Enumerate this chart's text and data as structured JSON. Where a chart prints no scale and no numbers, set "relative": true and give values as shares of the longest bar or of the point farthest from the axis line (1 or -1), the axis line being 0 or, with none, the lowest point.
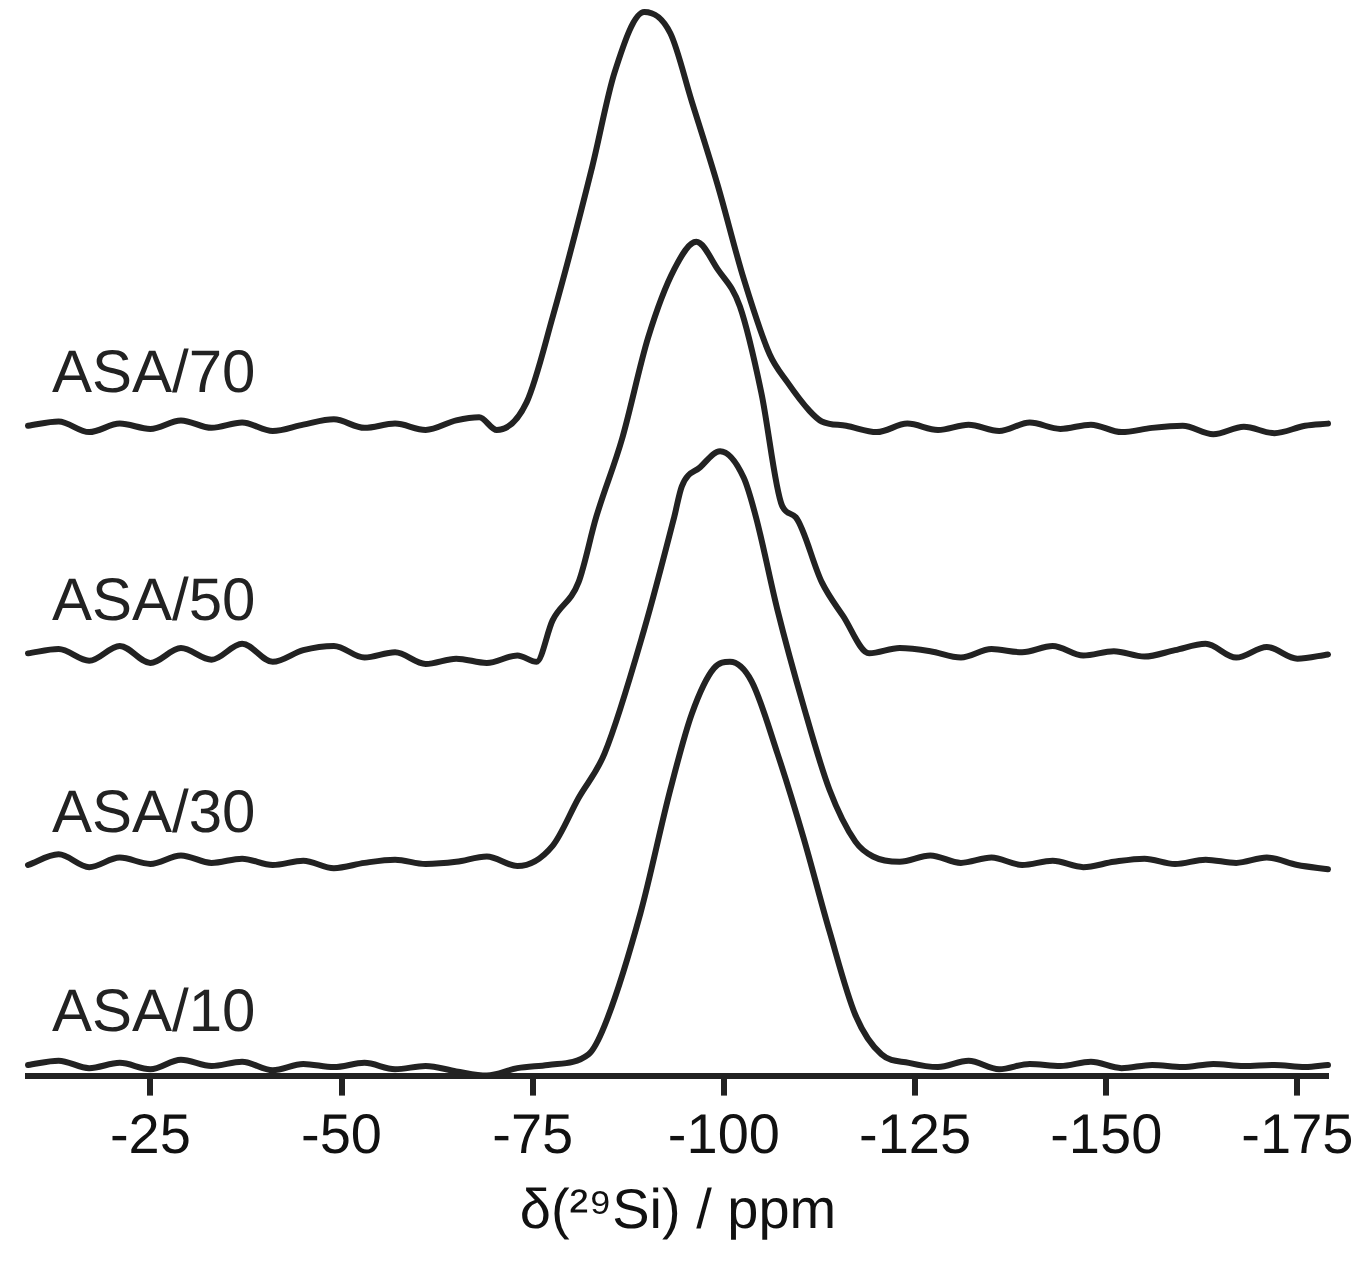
{
  "chart_data": {
    "type": "line",
    "xlabel": "δ(²⁹Si) / ppm",
    "relative": true,
    "xlim": [
      -9,
      -179
    ],
    "xticks": [
      -25,
      -50,
      -75,
      -100,
      -125,
      -150,
      -175
    ],
    "grid": false,
    "legend": false,
    "marker": "none",
    "tick_labels": "x",
    "series": [
      {
        "name": "ASA/70",
        "color": "#222222",
        "x": [
          -9,
          -13,
          -17,
          -21,
          -25,
          -29,
          -33,
          -37,
          -41,
          -45,
          -49,
          -53,
          -57,
          -61,
          -65,
          -68,
          -70.3,
          -74.2,
          -77.6,
          -82.8,
          -85.7,
          -89.6,
          -93.0,
          -95.8,
          -99.2,
          -102.6,
          -106.0,
          -108.3,
          -111.2,
          -112.8,
          -116,
          -120,
          -124,
          -128,
          -132,
          -136,
          -140,
          -144,
          -148,
          -152,
          -156,
          -160,
          -164,
          -168,
          -172,
          -176,
          -179
        ],
        "values": [
          0.611,
          0.615,
          0.605,
          0.613,
          0.608,
          0.616,
          0.609,
          0.614,
          0.606,
          0.612,
          0.617,
          0.609,
          0.613,
          0.607,
          0.616,
          0.619,
          0.607,
          0.633,
          0.713,
          0.855,
          0.943,
          1.0,
          0.98,
          0.916,
          0.837,
          0.749,
          0.678,
          0.652,
          0.625,
          0.615,
          0.611,
          0.605,
          0.613,
          0.607,
          0.612,
          0.606,
          0.614,
          0.608,
          0.612,
          0.605,
          0.609,
          0.611,
          0.603,
          0.61,
          0.604,
          0.611,
          0.613
        ]
      },
      {
        "name": "ASA/50",
        "color": "#222222",
        "x": [
          -9,
          -13,
          -17,
          -21,
          -25,
          -29,
          -33,
          -37,
          -41,
          -45,
          -49,
          -53,
          -57,
          -61,
          -65,
          -69,
          -73,
          -75.5,
          -77.6,
          -81.0,
          -83.3,
          -86.7,
          -90.1,
          -93.5,
          -96.4,
          -99.2,
          -102.1,
          -104.9,
          -107.6,
          -109.4,
          -112.8,
          -115.6,
          -119.0,
          -123,
          -127,
          -131,
          -135,
          -139,
          -143,
          -147,
          -151,
          -155,
          -159,
          -163,
          -167,
          -171,
          -175,
          -179
        ],
        "values": [
          0.397,
          0.401,
          0.39,
          0.404,
          0.388,
          0.402,
          0.391,
          0.406,
          0.389,
          0.4,
          0.404,
          0.393,
          0.398,
          0.387,
          0.392,
          0.388,
          0.395,
          0.389,
          0.428,
          0.464,
          0.525,
          0.599,
          0.694,
          0.758,
          0.784,
          0.758,
          0.723,
          0.642,
          0.536,
          0.525,
          0.464,
          0.432,
          0.397,
          0.402,
          0.399,
          0.393,
          0.401,
          0.398,
          0.404,
          0.395,
          0.399,
          0.394,
          0.4,
          0.406,
          0.393,
          0.403,
          0.392,
          0.396
        ]
      },
      {
        "name": "ASA/30",
        "color": "#222222",
        "x": [
          -9,
          -13,
          -17,
          -21,
          -25,
          -29,
          -33,
          -37,
          -41,
          -45,
          -49,
          -53,
          -57,
          -61,
          -65,
          -69,
          -73,
          -77.6,
          -81.0,
          -84.4,
          -89.6,
          -93.5,
          -94.5,
          -96.9,
          -99.5,
          -102.6,
          -104.2,
          -107.0,
          -110.4,
          -113.8,
          -117.2,
          -119.5,
          -123,
          -127,
          -131,
          -135,
          -139,
          -143,
          -147,
          -151,
          -155,
          -159,
          -163,
          -167,
          -171,
          -175,
          -179
        ],
        "values": [
          0.198,
          0.208,
          0.196,
          0.205,
          0.199,
          0.207,
          0.2,
          0.204,
          0.198,
          0.202,
          0.195,
          0.2,
          0.203,
          0.199,
          0.201,
          0.206,
          0.197,
          0.216,
          0.261,
          0.303,
          0.42,
          0.525,
          0.554,
          0.572,
          0.587,
          0.562,
          0.525,
          0.438,
          0.348,
          0.269,
          0.22,
          0.206,
          0.201,
          0.207,
          0.2,
          0.205,
          0.198,
          0.202,
          0.196,
          0.201,
          0.204,
          0.199,
          0.203,
          0.2,
          0.205,
          0.198,
          0.194
        ]
      },
      {
        "name": "ASA/10",
        "color": "#222222",
        "x": [
          -9,
          -13,
          -17,
          -21,
          -25,
          -29,
          -33,
          -37,
          -41,
          -45,
          -49,
          -53,
          -57,
          -61,
          -65,
          -69,
          -73,
          -77,
          -82.3,
          -84.4,
          -89.1,
          -93.0,
          -95.8,
          -98.7,
          -100.8,
          -103.6,
          -107.0,
          -110.4,
          -113.8,
          -117.2,
          -120.6,
          -124.2,
          -128,
          -132,
          -136,
          -140,
          -144,
          -148,
          -152,
          -156,
          -160,
          -164,
          -168,
          -172,
          -176,
          -179
        ],
        "values": [
          0.01,
          0.014,
          0.007,
          0.012,
          0.006,
          0.015,
          0.009,
          0.013,
          0.005,
          0.011,
          0.008,
          0.012,
          0.006,
          0.009,
          0.004,
          0.0,
          0.007,
          0.01,
          0.02,
          0.047,
          0.153,
          0.269,
          0.34,
          0.383,
          0.389,
          0.371,
          0.303,
          0.224,
          0.136,
          0.057,
          0.02,
          0.012,
          0.008,
          0.014,
          0.006,
          0.011,
          0.009,
          0.013,
          0.007,
          0.01,
          0.008,
          0.011,
          0.009,
          0.01,
          0.008,
          0.01
        ]
      }
    ]
  }
}
